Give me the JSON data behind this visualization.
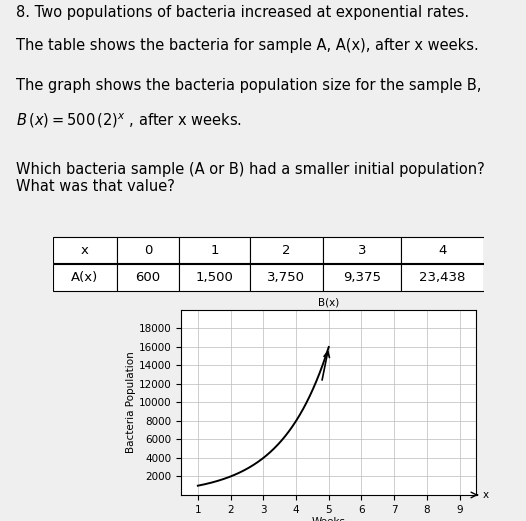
{
  "title_line1": "8. Two populations of bacteria increased at exponential rates.",
  "title_line2": "The table shows the bacteria for sample A, A(x), after x weeks.",
  "formula_line1": "The graph shows the bacteria population size for the sample B,",
  "formula_line2": "$B\\,(x) = 500\\,(2)^{x}$ , after x weeks.",
  "question_text": "Which bacteria sample (A or B) had a smaller initial population?\nWhat was that value?",
  "table_headers": [
    "x",
    "0",
    "1",
    "2",
    "3",
    "4"
  ],
  "table_row_label": "A(x)",
  "table_values": [
    "600",
    "1,500",
    "3,750",
    "9,375",
    "23,438"
  ],
  "graph_title": "B(x)",
  "x_label": "Weeks",
  "y_label": "Bacteria Population",
  "x_ticks": [
    1,
    2,
    3,
    4,
    5,
    6,
    7,
    8,
    9
  ],
  "y_ticks": [
    2000,
    4000,
    6000,
    8000,
    10000,
    12000,
    14000,
    16000,
    18000
  ],
  "background_color": "#efefef",
  "plot_bg_color": "#ffffff",
  "text_color": "#000000",
  "grid_color": "#bbbbbb",
  "curve_color": "#000000",
  "table_border_color": "#000000",
  "font_size_title": 10.5,
  "font_size_formula": 10.5,
  "font_size_question": 10.5,
  "font_size_table": 9.5,
  "font_size_graph": 7.5
}
